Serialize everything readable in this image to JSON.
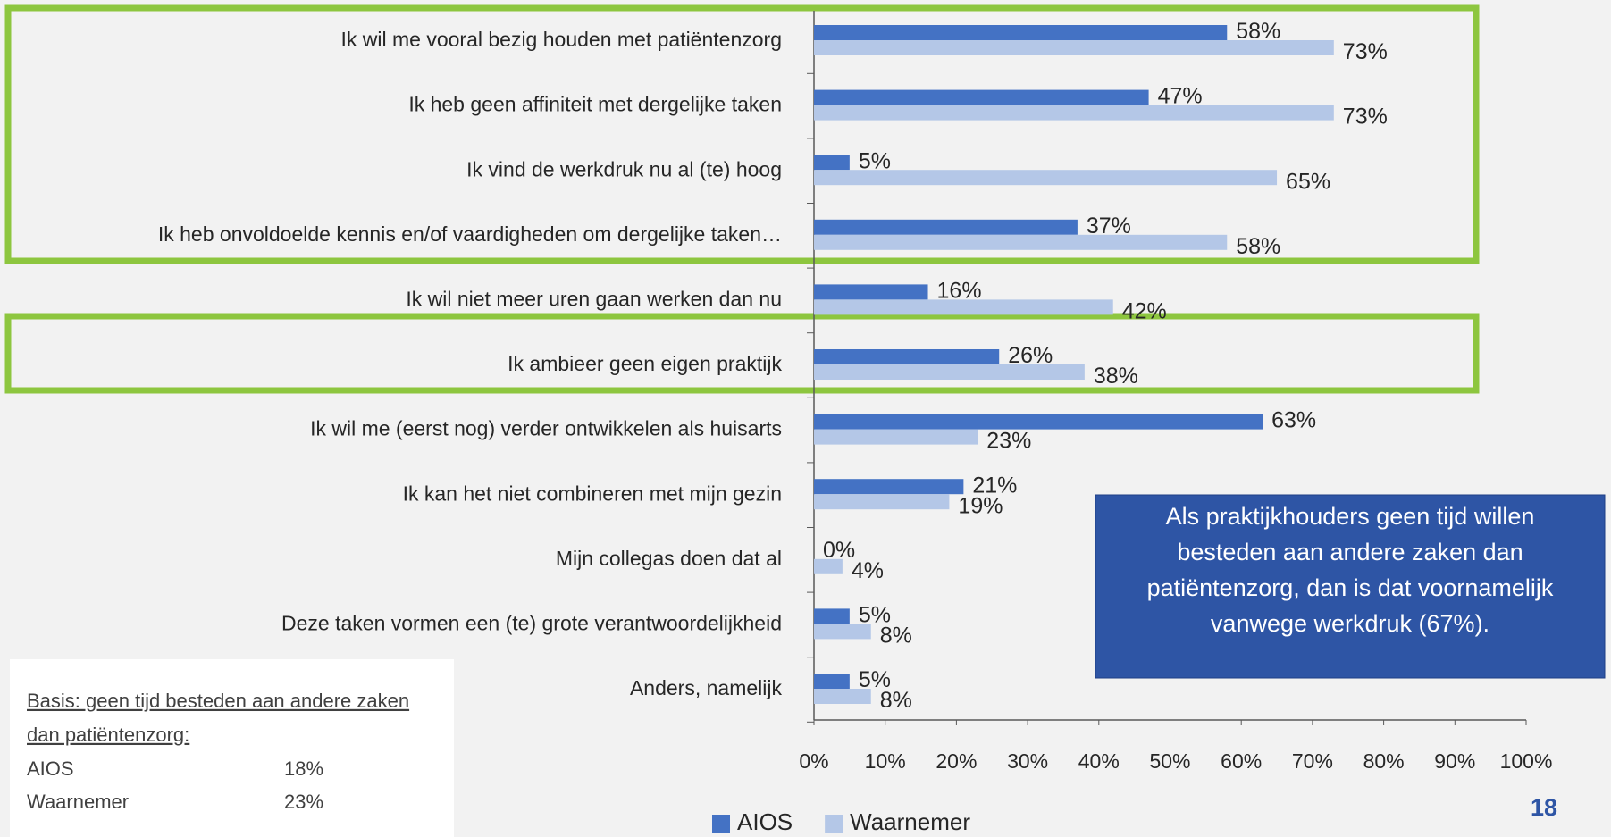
{
  "chart_data": {
    "type": "hbar",
    "categories": [
      "Ik wil me vooral bezig houden met patiëntenzorg",
      "Ik heb geen affiniteit met dergelijke taken",
      "Ik vind de werkdruk nu al (te) hoog",
      "Ik heb onvoldoelde kennis en/of vaardigheden om dergelijke taken…",
      "Ik wil niet meer uren gaan werken dan nu",
      "Ik ambieer geen eigen praktijk",
      "Ik wil me (eerst nog) verder ontwikkelen als huisarts",
      "Ik kan het niet combineren met mijn gezin",
      "Mijn collegas doen dat al",
      "Deze taken vormen een (te) grote verantwoordelijkheid",
      "Anders, namelijk"
    ],
    "series": [
      {
        "name": "AIOS",
        "color": "#4472c4",
        "values": [
          58,
          47,
          5,
          37,
          16,
          26,
          63,
          21,
          0,
          5,
          5
        ],
        "value_labels": [
          "58%",
          "47%",
          "5%",
          "37%",
          "16%",
          "26%",
          "63%",
          "21%",
          "0%",
          "5%",
          "5%"
        ]
      },
      {
        "name": "Waarnemer",
        "color": "#b4c7e7",
        "values": [
          73,
          73,
          65,
          58,
          42,
          38,
          23,
          19,
          4,
          8,
          8
        ],
        "value_labels": [
          "73%",
          "73%",
          "65%",
          "58%",
          "42%",
          "38%",
          "23%",
          "19%",
          "4%",
          "8%",
          "8%"
        ]
      }
    ],
    "xlim": [
      0,
      100
    ],
    "xticks": [
      {
        "value": 0,
        "label": "0%"
      },
      {
        "value": 10,
        "label": "10%"
      },
      {
        "value": 20,
        "label": "20%"
      },
      {
        "value": 30,
        "label": "30%"
      },
      {
        "value": 40,
        "label": "40%"
      },
      {
        "value": 50,
        "label": "50%"
      },
      {
        "value": 60,
        "label": "60%"
      },
      {
        "value": 70,
        "label": "70%"
      },
      {
        "value": 80,
        "label": "80%"
      },
      {
        "value": 90,
        "label": "90%"
      },
      {
        "value": 100,
        "label": "100%"
      }
    ],
    "legend": "bottom",
    "annotations": {
      "callout": [
        "Als praktijkhouders geen tijd willen",
        "besteden aan andere zaken dan",
        "patiëntenzorg, dan is dat voornamelijk",
        "vanwege werkdruk (67%)."
      ],
      "basis": {
        "title": [
          "Basis: geen tijd besteden aan andere zaken",
          "dan patiëntenzorg:"
        ],
        "rows": [
          {
            "name": "AIOS",
            "value": "18%"
          },
          {
            "name": "Waarnemer",
            "value": "23%"
          }
        ]
      },
      "page_number": "18"
    }
  }
}
